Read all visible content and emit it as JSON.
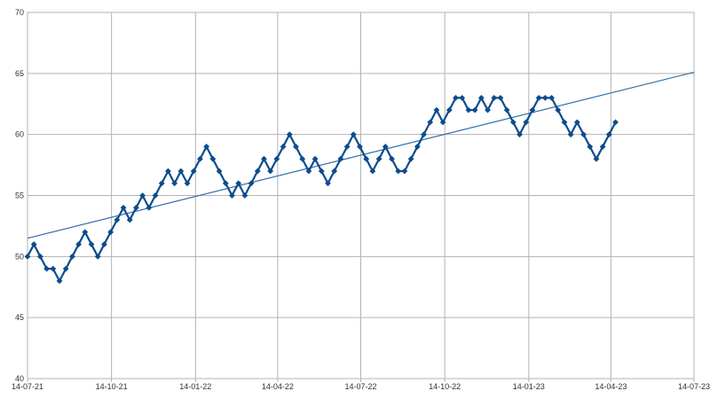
{
  "chart_data": {
    "type": "line",
    "title": "",
    "xlabel": "",
    "ylabel": "",
    "x_axis_type": "date",
    "xlim": [
      "2021-07-14",
      "2023-07-14"
    ],
    "ylim": [
      40,
      70
    ],
    "y_ticks": [
      40,
      45,
      50,
      55,
      60,
      65,
      70
    ],
    "x_ticks": [
      "2021-07-14",
      "2021-10-14",
      "2022-01-14",
      "2022-04-14",
      "2022-07-14",
      "2022-10-14",
      "2023-01-14",
      "2023-04-14",
      "2023-07-14"
    ],
    "x_tick_labels": [
      "14-07-21",
      "14-10-21",
      "14-01-22",
      "14-04-22",
      "14-07-22",
      "14-10-22",
      "14-01-23",
      "14-04-23",
      "14-07-23"
    ],
    "grid": true,
    "legend": "none",
    "colors": {
      "series": "#0d4c8c",
      "trend": "#2f6fa8",
      "grid": "#b3b3b3"
    },
    "series": [
      {
        "marker": "diamond",
        "x": [
          "2021-07-14",
          "2021-07-21",
          "2021-07-28",
          "2021-08-04",
          "2021-08-11",
          "2021-08-18",
          "2021-08-25",
          "2021-09-01",
          "2021-09-08",
          "2021-09-15",
          "2021-09-22",
          "2021-09-29",
          "2021-10-06",
          "2021-10-13",
          "2021-10-20",
          "2021-10-27",
          "2021-11-03",
          "2021-11-10",
          "2021-11-17",
          "2021-11-24",
          "2021-12-01",
          "2021-12-08",
          "2021-12-15",
          "2021-12-22",
          "2021-12-29",
          "2022-01-05",
          "2022-01-12",
          "2022-01-19",
          "2022-01-26",
          "2022-02-02",
          "2022-02-09",
          "2022-02-16",
          "2022-02-23",
          "2022-03-02",
          "2022-03-09",
          "2022-03-16",
          "2022-03-23",
          "2022-03-30",
          "2022-04-06",
          "2022-04-13",
          "2022-04-20",
          "2022-04-27",
          "2022-05-04",
          "2022-05-11",
          "2022-05-18",
          "2022-05-25",
          "2022-06-01",
          "2022-06-08",
          "2022-06-15",
          "2022-06-22",
          "2022-06-29",
          "2022-07-06",
          "2022-07-13",
          "2022-07-20",
          "2022-07-27",
          "2022-08-03",
          "2022-08-10",
          "2022-08-17",
          "2022-08-24",
          "2022-08-31",
          "2022-09-07",
          "2022-09-14",
          "2022-09-21",
          "2022-09-28",
          "2022-10-05",
          "2022-10-12",
          "2022-10-19",
          "2022-10-26",
          "2022-11-02",
          "2022-11-09",
          "2022-11-16",
          "2022-11-23",
          "2022-11-30",
          "2022-12-07",
          "2022-12-14",
          "2022-12-21",
          "2022-12-28",
          "2023-01-04",
          "2023-01-11",
          "2023-01-18",
          "2023-01-25",
          "2023-02-01",
          "2023-02-08",
          "2023-02-15",
          "2023-02-22",
          "2023-03-01",
          "2023-03-08",
          "2023-03-15",
          "2023-03-22",
          "2023-03-29",
          "2023-04-05",
          "2023-04-12",
          "2023-04-19"
        ],
        "y": [
          50,
          51,
          50,
          49,
          49,
          48,
          49,
          50,
          51,
          52,
          51,
          50,
          51,
          52,
          53,
          54,
          53,
          54,
          55,
          54,
          55,
          56,
          57,
          56,
          57,
          56,
          57,
          58,
          59,
          58,
          57,
          56,
          55,
          56,
          55,
          56,
          57,
          58,
          57,
          58,
          59,
          60,
          59,
          58,
          57,
          58,
          57,
          56,
          57,
          58,
          59,
          60,
          59,
          58,
          57,
          58,
          59,
          58,
          57,
          57,
          58,
          59,
          60,
          61,
          62,
          61,
          62,
          63,
          63,
          62,
          62,
          63,
          62,
          63,
          63,
          62,
          61,
          60,
          61,
          62,
          63,
          63,
          63,
          62,
          61,
          60,
          61,
          60,
          59,
          58,
          59,
          60,
          61
        ]
      }
    ],
    "trendline": {
      "type": "linear",
      "x": [
        "2021-07-14",
        "2023-07-14"
      ],
      "y": [
        51.5,
        65.1
      ]
    }
  }
}
